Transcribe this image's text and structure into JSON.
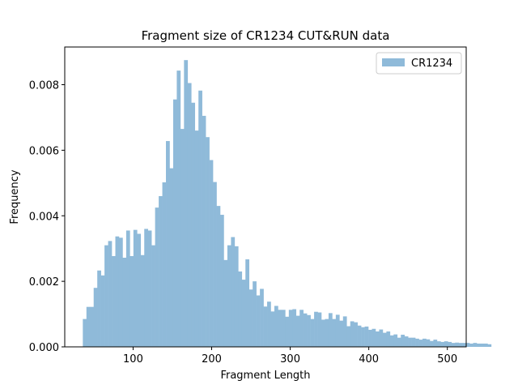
{
  "chart_data": {
    "type": "bar",
    "title": "Fragment size of CR1234 CUT&RUN data",
    "xlabel": "Fragment Length",
    "ylabel": "Frequency",
    "xlim": [
      13,
      524
    ],
    "ylim": [
      0,
      0.00915
    ],
    "xticks": [
      100,
      200,
      300,
      400,
      500
    ],
    "xtick_labels": [
      "100",
      "200",
      "300",
      "400",
      "500"
    ],
    "yticks": [
      0,
      0.002,
      0.004,
      0.006,
      0.008
    ],
    "ytick_labels": [
      "0.000",
      "0.002",
      "0.004",
      "0.006",
      "0.008"
    ],
    "grid": false,
    "legend_position": "top-right",
    "bin_start": 36,
    "bin_width": 4.6,
    "series": [
      {
        "name": "CR1234",
        "color": "#8fbad9",
        "values": [
          0.00085,
          0.00122,
          0.00122,
          0.0018,
          0.00233,
          0.00218,
          0.0031,
          0.00323,
          0.00277,
          0.00337,
          0.00333,
          0.00272,
          0.00355,
          0.00277,
          0.00357,
          0.00345,
          0.0028,
          0.0036,
          0.00355,
          0.0031,
          0.00425,
          0.0046,
          0.00502,
          0.00628,
          0.00545,
          0.00755,
          0.00843,
          0.00665,
          0.00875,
          0.00805,
          0.00745,
          0.0066,
          0.00782,
          0.00705,
          0.0064,
          0.0057,
          0.00503,
          0.0043,
          0.00403,
          0.00265,
          0.0031,
          0.00335,
          0.00307,
          0.0023,
          0.00205,
          0.00267,
          0.00175,
          0.002,
          0.00157,
          0.00177,
          0.00123,
          0.00138,
          0.00108,
          0.00125,
          0.00113,
          0.00113,
          0.00092,
          0.00113,
          0.00115,
          0.00095,
          0.00113,
          0.00102,
          0.00097,
          0.00085,
          0.00107,
          0.00105,
          0.00083,
          0.00085,
          0.00103,
          0.00085,
          0.00098,
          0.0008,
          0.00093,
          0.00063,
          0.00078,
          0.00075,
          0.00065,
          0.0006,
          0.00062,
          0.00052,
          0.00055,
          0.00047,
          0.00053,
          0.00043,
          0.00047,
          0.00035,
          0.00038,
          0.00028,
          0.00037,
          0.00032,
          0.00028,
          0.00028,
          0.00025,
          0.00022,
          0.00025,
          0.00023,
          0.00018,
          0.00022,
          0.00017,
          0.00015,
          0.00017,
          0.00015,
          0.00012,
          0.00013,
          0.00012,
          0.00012,
          0.00012,
          0.0001,
          0.00012,
          0.0001,
          0.0001,
          0.0001,
          8e-05
        ]
      }
    ]
  }
}
